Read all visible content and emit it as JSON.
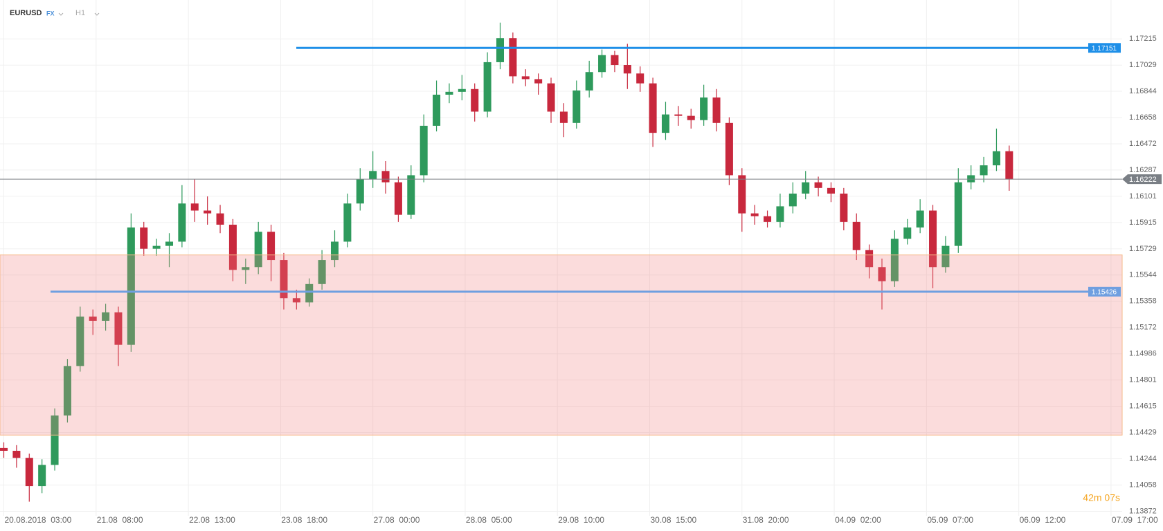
{
  "chart_data": {
    "type": "candlestick",
    "symbol": "EURUSD",
    "market": "FX",
    "timeframe": "H1",
    "x": [
      0,
      4,
      8,
      12,
      16,
      20,
      24,
      28,
      32,
      36,
      40,
      44,
      48,
      52,
      56,
      60,
      64,
      68,
      72,
      76,
      80,
      84,
      88,
      92,
      96,
      100,
      104,
      108,
      112,
      116,
      120,
      124,
      128,
      132,
      136,
      140,
      144,
      148,
      152,
      156,
      160,
      164,
      168,
      172,
      176,
      180,
      184,
      188,
      192,
      196,
      200,
      204,
      208,
      212,
      216,
      220,
      224,
      228,
      232,
      236,
      240,
      244,
      248,
      252,
      256,
      260,
      264,
      268,
      272,
      276,
      280,
      284,
      288,
      292,
      296,
      300,
      304,
      308,
      312,
      316
    ],
    "open": [
      1.1432,
      1.143,
      1.1425,
      1.1405,
      1.142,
      1.1455,
      1.149,
      1.1525,
      1.1522,
      1.1528,
      1.1505,
      1.1588,
      1.1573,
      1.1575,
      1.1578,
      1.1605,
      1.16,
      1.1598,
      1.159,
      1.1558,
      1.156,
      1.1585,
      1.1565,
      1.1538,
      1.1535,
      1.1548,
      1.1565,
      1.1578,
      1.1605,
      1.1622,
      1.1628,
      1.162,
      1.1597,
      1.1625,
      1.166,
      1.1682,
      1.1684,
      1.1686,
      1.167,
      1.1705,
      1.1722,
      1.1695,
      1.1693,
      1.169,
      1.167,
      1.1662,
      1.1685,
      1.1698,
      1.171,
      1.1703,
      1.1697,
      1.169,
      1.1655,
      1.1668,
      1.1667,
      1.1664,
      1.168,
      1.1662,
      1.1625,
      1.1598,
      1.1596,
      1.1592,
      1.1603,
      1.1612,
      1.162,
      1.1616,
      1.1612,
      1.1592,
      1.1572,
      1.156,
      1.155,
      1.158,
      1.1588,
      1.16,
      1.156,
      1.1575,
      1.162,
      1.1625,
      1.1632,
      1.1642
    ],
    "high": [
      1.1436,
      1.1434,
      1.1428,
      1.1424,
      1.146,
      1.1495,
      1.1532,
      1.153,
      1.1534,
      1.1532,
      1.1598,
      1.1592,
      1.158,
      1.1584,
      1.1618,
      1.1622,
      1.161,
      1.1604,
      1.1594,
      1.1566,
      1.1592,
      1.159,
      1.157,
      1.1544,
      1.1552,
      1.1572,
      1.1586,
      1.1612,
      1.163,
      1.1642,
      1.1635,
      1.1624,
      1.1632,
      1.1668,
      1.1692,
      1.169,
      1.1696,
      1.169,
      1.1712,
      1.1733,
      1.1726,
      1.17,
      1.1697,
      1.1694,
      1.1676,
      1.1692,
      1.1706,
      1.1714,
      1.1713,
      1.1718,
      1.1702,
      1.1694,
      1.1677,
      1.1674,
      1.1672,
      1.1689,
      1.1686,
      1.1666,
      1.163,
      1.1604,
      1.16,
      1.1612,
      1.162,
      1.1628,
      1.1624,
      1.162,
      1.1616,
      1.1598,
      1.1576,
      1.1566,
      1.1586,
      1.1594,
      1.1608,
      1.1604,
      1.1582,
      1.163,
      1.1632,
      1.1638,
      1.1658,
      1.1646
    ],
    "low": [
      1.1425,
      1.1418,
      1.1394,
      1.14,
      1.1416,
      1.145,
      1.1486,
      1.1512,
      1.1515,
      1.149,
      1.15,
      1.1568,
      1.1568,
      1.156,
      1.1574,
      1.1592,
      1.159,
      1.1584,
      1.155,
      1.1548,
      1.1555,
      1.155,
      1.153,
      1.153,
      1.1532,
      1.1544,
      1.156,
      1.1574,
      1.16,
      1.1616,
      1.1612,
      1.1592,
      1.1594,
      1.162,
      1.1656,
      1.1676,
      1.1678,
      1.1663,
      1.1666,
      1.17,
      1.169,
      1.1688,
      1.1682,
      1.1662,
      1.1652,
      1.1658,
      1.168,
      1.1694,
      1.1698,
      1.1686,
      1.1684,
      1.1645,
      1.165,
      1.166,
      1.1658,
      1.166,
      1.1656,
      1.1618,
      1.1585,
      1.159,
      1.1588,
      1.1588,
      1.1598,
      1.1608,
      1.161,
      1.1606,
      1.1586,
      1.1565,
      1.1552,
      1.153,
      1.1546,
      1.1576,
      1.1584,
      1.1545,
      1.1556,
      1.157,
      1.1615,
      1.162,
      1.1628,
      1.1614
    ],
    "close": [
      1.143,
      1.1425,
      1.1405,
      1.142,
      1.1455,
      1.149,
      1.1525,
      1.1522,
      1.1528,
      1.1505,
      1.1588,
      1.1573,
      1.1575,
      1.1578,
      1.1605,
      1.16,
      1.1598,
      1.159,
      1.1558,
      1.156,
      1.1585,
      1.1565,
      1.1538,
      1.1535,
      1.1548,
      1.1565,
      1.1578,
      1.1605,
      1.1622,
      1.1628,
      1.162,
      1.1597,
      1.1625,
      1.166,
      1.1682,
      1.1684,
      1.1686,
      1.167,
      1.1705,
      1.1722,
      1.1695,
      1.1693,
      1.169,
      1.167,
      1.1662,
      1.1685,
      1.1698,
      1.171,
      1.1703,
      1.1697,
      1.169,
      1.1655,
      1.1668,
      1.1667,
      1.1664,
      1.168,
      1.1662,
      1.1625,
      1.1598,
      1.1596,
      1.1592,
      1.1603,
      1.1612,
      1.162,
      1.1616,
      1.1612,
      1.1592,
      1.1572,
      1.156,
      1.155,
      1.158,
      1.1588,
      1.16,
      1.156,
      1.1575,
      1.162,
      1.1625,
      1.1632,
      1.1642,
      1.1622
    ],
    "up_color": "#2e9a5c",
    "down_color": "#c8283d",
    "ylim": [
      1.1384,
      1.1749
    ],
    "yticks": [
      1.13872,
      1.14058,
      1.14244,
      1.14429,
      1.14615,
      1.14801,
      1.14986,
      1.15172,
      1.15358,
      1.15544,
      1.15729,
      1.15915,
      1.16101,
      1.16287,
      1.16472,
      1.16658,
      1.16844,
      1.17029,
      1.17215
    ],
    "xlim": [
      -1.2,
      351.5
    ],
    "xticks": [
      {
        "value": 0,
        "label": "20.08.2018  03:00"
      },
      {
        "value": 29,
        "label": "21.08  08:00"
      },
      {
        "value": 58,
        "label": "22.08  13:00"
      },
      {
        "value": 87,
        "label": "23.08  18:00"
      },
      {
        "value": 116,
        "label": "27.08  00:00"
      },
      {
        "value": 145,
        "label": "28.08  05:00"
      },
      {
        "value": 174,
        "label": "29.08  10:00"
      },
      {
        "value": 203,
        "label": "30.08  15:00"
      },
      {
        "value": 232,
        "label": "31.08  20:00"
      },
      {
        "value": 261,
        "label": "04.09  02:00"
      },
      {
        "value": 290,
        "label": "05.09  07:00"
      },
      {
        "value": 319,
        "label": "06.09  12:00"
      },
      {
        "value": 348,
        "label": "07.09  17:00"
      }
    ],
    "levels": [
      {
        "value": 1.17151,
        "color": "#1e8fe8"
      },
      {
        "value": 1.15426,
        "color": "#6f9fe0"
      }
    ],
    "current_price": {
      "value": 1.16222,
      "color": "#7a7f85"
    },
    "zone": {
      "range": [
        1.14411,
        1.15686
      ],
      "color": "#f08080"
    },
    "timer": "42m 07s",
    "grid": true
  }
}
